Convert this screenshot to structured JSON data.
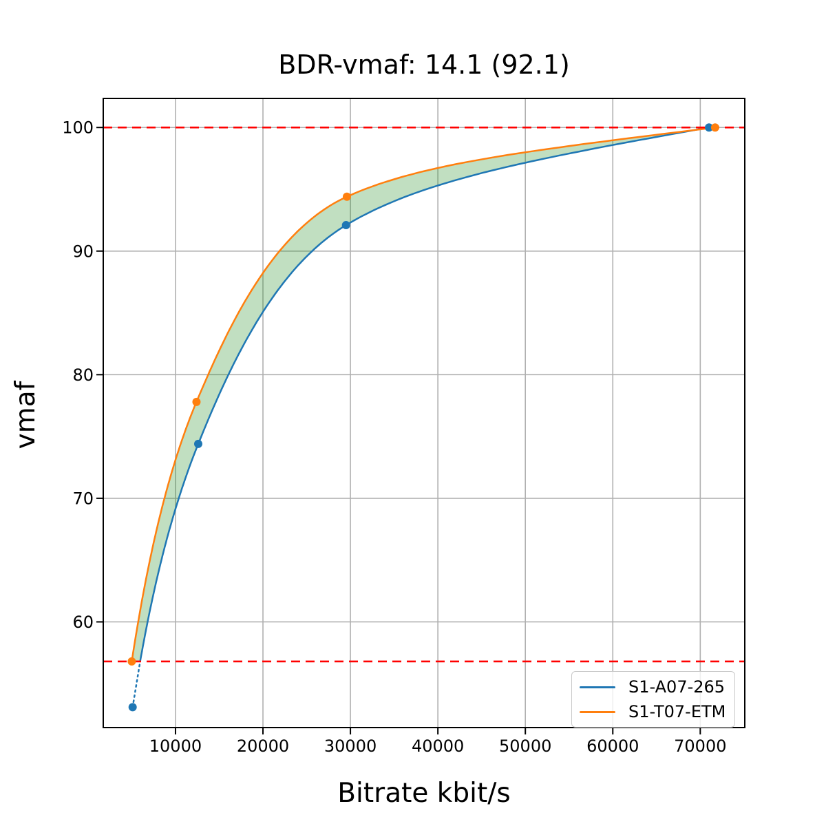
{
  "chart_data": {
    "type": "line",
    "title": "BDR-vmaf: 14.1 (92.1)",
    "xlabel": "Bitrate kbit/s",
    "ylabel": "vmaf",
    "xlim": [
      1740,
      75090
    ],
    "ylim": [
      51.45,
      102.35
    ],
    "x_ticks": [
      10000,
      20000,
      30000,
      40000,
      50000,
      60000,
      70000
    ],
    "y_ticks": [
      60,
      70,
      80,
      90,
      100
    ],
    "grid": true,
    "grid_color": "#b0b0b0",
    "legend_position": "lower right",
    "series": [
      {
        "name": "S1-A07-265",
        "color": "#1f77b4",
        "points": [
          [
            5100,
            53.1
          ],
          [
            12600,
            74.4
          ],
          [
            29500,
            92.1
          ],
          [
            71000,
            100.0
          ]
        ]
      },
      {
        "name": "S1-T07-ETM",
        "color": "#ff7f0e",
        "points": [
          [
            5000,
            56.8
          ],
          [
            12400,
            77.8
          ],
          [
            29600,
            94.4
          ],
          [
            71700,
            100.0
          ]
        ]
      }
    ],
    "bd_overlap_lines": {
      "lower": 56.8,
      "upper": 100.0,
      "color": "#ff0000",
      "style": "dashed"
    },
    "fill_between_color": "rgba(34,139,34,0.28)"
  }
}
